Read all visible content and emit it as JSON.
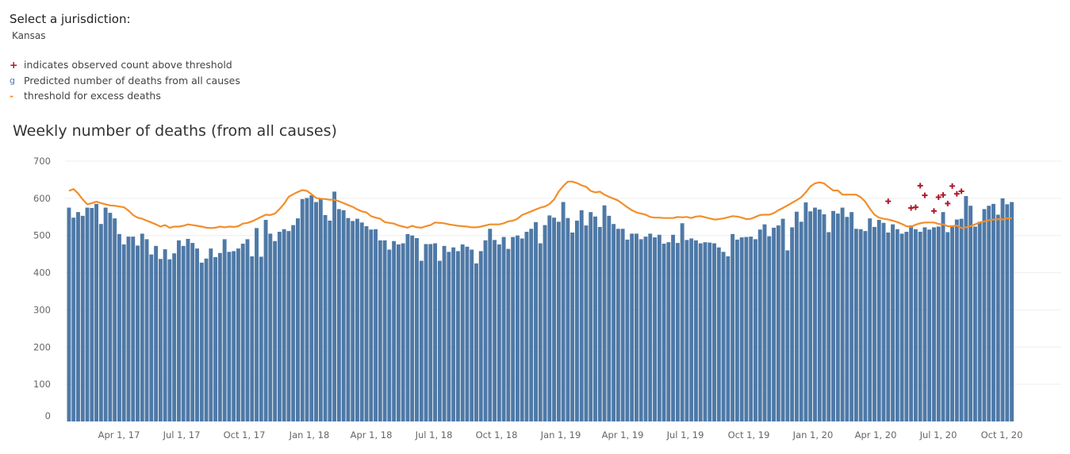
{
  "selector": {
    "label": "Select a jurisdiction:",
    "value": "Kansas"
  },
  "legend": [
    {
      "symbol": "+",
      "color": "#b2182b",
      "label": "indicates observed count above threshold"
    },
    {
      "symbol": "g",
      "color": "#4e79a7",
      "label": "Predicted number of deaths from all causes"
    },
    {
      "symbol": "-",
      "color": "#f28e2b",
      "label": "threshold for excess deaths"
    }
  ],
  "colors": {
    "bar": "#4e79a7",
    "threshold": "#f28e2b",
    "excess": "#b2182b",
    "grid": "#eeeeee"
  },
  "chart_data": {
    "type": "bar",
    "title": "Weekly number of deaths (from all causes)",
    "xlabel": "",
    "ylabel": "",
    "ylim": [
      0,
      700
    ],
    "y_ticks": [
      0,
      100,
      200,
      300,
      400,
      500,
      600,
      700
    ],
    "x_tick_labels": [
      "Apr 1, 17",
      "Jul 1, 17",
      "Oct 1, 17",
      "Jan 1, 18",
      "Apr 1, 18",
      "Jul 1, 18",
      "Oct 1, 18",
      "Jan 1, 19",
      "Apr 1, 19",
      "Jul 1, 19",
      "Oct 1, 19",
      "Jan 1, 20",
      "Apr 1, 20",
      "Jul 1, 20",
      "Oct 1, 20"
    ],
    "grid": "horizontal",
    "series": [
      {
        "name": "Predicted number of deaths from all causes",
        "kind": "bar",
        "values": [
          575,
          548,
          563,
          553,
          575,
          574,
          585,
          531,
          575,
          561,
          546,
          504,
          476,
          497,
          497,
          473,
          505,
          490,
          449,
          472,
          437,
          463,
          436,
          452,
          487,
          472,
          491,
          480,
          465,
          427,
          438,
          465,
          442,
          453,
          490,
          456,
          458,
          465,
          478,
          490,
          444,
          520,
          443,
          542,
          505,
          485,
          510,
          517,
          512,
          528,
          546,
          598,
          601,
          608,
          590,
          598,
          555,
          540,
          618,
          571,
          568,
          547,
          539,
          545,
          535,
          525,
          516,
          517,
          487,
          487,
          462,
          485,
          476,
          479,
          504,
          500,
          493,
          432,
          477,
          477,
          479,
          432,
          472,
          456,
          468,
          458,
          476,
          470,
          462,
          425,
          458,
          487,
          518,
          488,
          476,
          496,
          464,
          496,
          500,
          492,
          510,
          518,
          536,
          479,
          528,
          554,
          548,
          537,
          590,
          547,
          508,
          540,
          568,
          527,
          563,
          551,
          523,
          581,
          553,
          531,
          518,
          518,
          489,
          505,
          505,
          490,
          497,
          505,
          495,
          502,
          478,
          482,
          502,
          480,
          533,
          488,
          492,
          487,
          479,
          482,
          481,
          479,
          468,
          456,
          444,
          504,
          489,
          495,
          496,
          497,
          490,
          516,
          530,
          498,
          521,
          527,
          545,
          460,
          522,
          564,
          537,
          589,
          565,
          575,
          570,
          557,
          509,
          566,
          559,
          575,
          550,
          563,
          518,
          517,
          512,
          546,
          523,
          542,
          534,
          508,
          530,
          517,
          505,
          510,
          527,
          517,
          510,
          522,
          516,
          522,
          524,
          563,
          509,
          523,
          543,
          545,
          606,
          580,
          524,
          537,
          571,
          580,
          585,
          556,
          600,
          584,
          590
        ],
        "excess_points": [
          [
            179,
            592
          ],
          [
            184,
            574
          ],
          [
            185,
            576
          ],
          [
            186,
            634
          ],
          [
            187,
            608
          ],
          [
            189,
            566
          ],
          [
            190,
            603
          ],
          [
            191,
            609
          ],
          [
            192,
            586
          ],
          [
            193,
            633
          ],
          [
            194,
            612
          ],
          [
            195,
            619
          ]
        ]
      },
      {
        "name": "threshold for excess deaths",
        "kind": "line",
        "values": [
          620,
          625,
          613,
          597,
          584,
          587,
          591,
          587,
          584,
          581,
          580,
          578,
          576,
          567,
          555,
          548,
          545,
          540,
          535,
          530,
          524,
          528,
          521,
          524,
          524,
          526,
          530,
          528,
          526,
          524,
          521,
          520,
          521,
          524,
          522,
          524,
          523,
          525,
          532,
          534,
          538,
          544,
          550,
          556,
          555,
          559,
          571,
          585,
          604,
          611,
          617,
          622,
          620,
          611,
          601,
          599,
          598,
          596,
          596,
          592,
          587,
          582,
          577,
          570,
          565,
          562,
          552,
          548,
          545,
          536,
          534,
          532,
          527,
          524,
          521,
          526,
          522,
          521,
          525,
          528,
          535,
          534,
          533,
          530,
          528,
          526,
          525,
          524,
          522,
          522,
          524,
          527,
          530,
          530,
          530,
          533,
          538,
          540,
          545,
          555,
          560,
          565,
          570,
          575,
          578,
          585,
          597,
          618,
          633,
          645,
          645,
          641,
          635,
          631,
          620,
          616,
          618,
          610,
          604,
          599,
          594,
          585,
          576,
          568,
          562,
          559,
          556,
          550,
          548,
          548,
          547,
          547,
          547,
          550,
          549,
          550,
          547,
          551,
          552,
          549,
          546,
          543,
          544,
          546,
          549,
          552,
          551,
          548,
          544,
          545,
          550,
          555,
          556,
          556,
          560,
          568,
          574,
          581,
          588,
          595,
          603,
          616,
          632,
          640,
          643,
          640,
          630,
          621,
          621,
          610,
          610,
          610,
          610,
          603,
          591,
          572,
          556,
          548,
          545,
          543,
          540,
          536,
          531,
          525,
          523,
          529,
          533,
          535,
          535,
          535,
          531,
          530,
          525,
          525,
          527,
          520,
          522,
          525,
          530,
          535,
          538,
          541,
          543,
          544,
          543,
          546,
          547
        ]
      }
    ]
  }
}
